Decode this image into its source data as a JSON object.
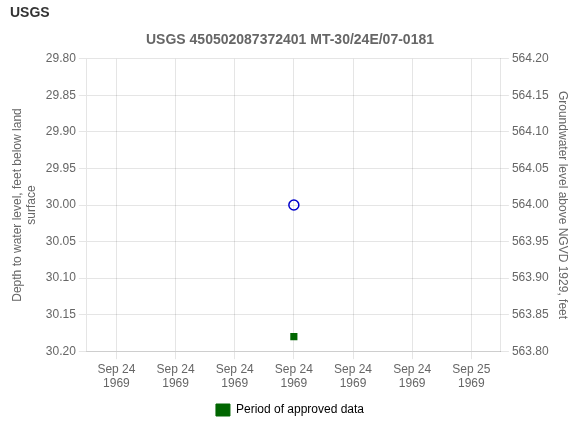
{
  "chart_data": {
    "type": "scatter",
    "title": "USGS 450502087372401 MT-30/24E/07-0181",
    "annotations": [
      {
        "text": "USGS"
      }
    ],
    "x_label": null,
    "y_label": "Depth to water level, feet below land\nsurface",
    "y2_label": "Groundwater level above NGVD 1929, feet",
    "categories": [
      "Sep 24\n1969",
      "Sep 24\n1969",
      "Sep 24\n1969",
      "Sep 24\n1969",
      "Sep 24\n1969",
      "Sep 24\n1969",
      "Sep 25\n1969"
    ],
    "series": [
      {
        "color": "#0000cc",
        "marker": "open_circle",
        "values": [
          null,
          null,
          null,
          30.0,
          null,
          null,
          null
        ]
      },
      {
        "name": "Period of approved data",
        "color": "#006600",
        "marker": "square",
        "values": [
          null,
          null,
          null,
          30.18,
          null,
          null,
          null
        ]
      }
    ],
    "ylim": [
      30.2,
      29.8
    ],
    "yticks": [
      {
        "value": 29.8,
        "label": "29.80"
      },
      {
        "value": 29.85,
        "label": "29.85"
      },
      {
        "value": 29.9,
        "label": "29.90"
      },
      {
        "value": 29.95,
        "label": "29.95"
      },
      {
        "value": 30.0,
        "label": "30.00"
      },
      {
        "value": 30.05,
        "label": "30.05"
      },
      {
        "value": 30.1,
        "label": "30.10"
      },
      {
        "value": 30.15,
        "label": "30.15"
      },
      {
        "value": 30.2,
        "label": "30.20"
      }
    ],
    "y2lim": [
      563.8,
      564.2
    ],
    "y2ticks": [
      {
        "value": 564.2,
        "label": "564.20"
      },
      {
        "value": 564.15,
        "label": "564.15"
      },
      {
        "value": 564.1,
        "label": "564.10"
      },
      {
        "value": 564.05,
        "label": "564.05"
      },
      {
        "value": 564.0,
        "label": "564.00"
      },
      {
        "value": 563.95,
        "label": "563.95"
      },
      {
        "value": 563.9,
        "label": "563.90"
      },
      {
        "value": 563.85,
        "label": "563.85"
      },
      {
        "value": 563.8,
        "label": "563.80"
      }
    ],
    "grid": true,
    "legend": "bottom"
  }
}
